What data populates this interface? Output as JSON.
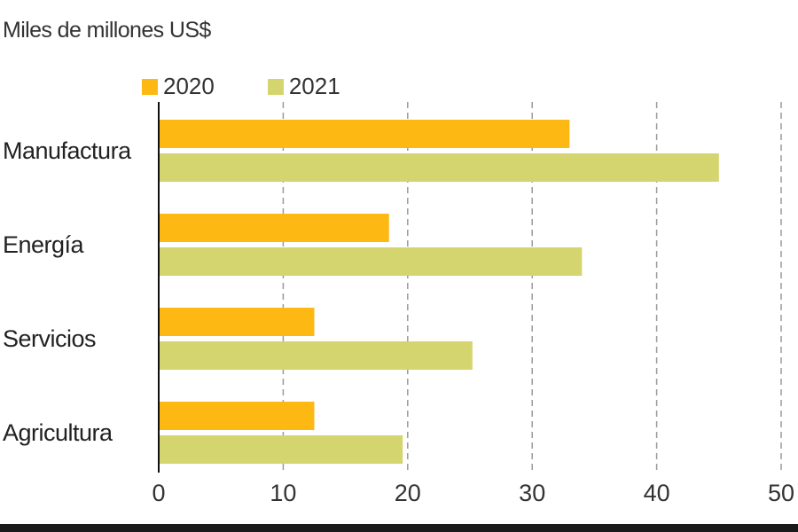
{
  "chart_data": {
    "type": "bar",
    "orientation": "horizontal",
    "unit_label": "Miles de millones US$",
    "categories": [
      "Manufactura",
      "Energía",
      "Servicios",
      "Agricultura"
    ],
    "series": [
      {
        "name": "2020",
        "color": "#FDB813",
        "values": [
          33,
          18.5,
          12.5,
          12.5
        ]
      },
      {
        "name": "2021",
        "color": "#D4D56E",
        "values": [
          45,
          34,
          25.2,
          19.6
        ]
      }
    ],
    "xlim": [
      0,
      50
    ],
    "xticks": [
      "0",
      "10",
      "20",
      "30",
      "40",
      "50"
    ],
    "grid": "vertical dashed",
    "legend_position": "top-left"
  }
}
